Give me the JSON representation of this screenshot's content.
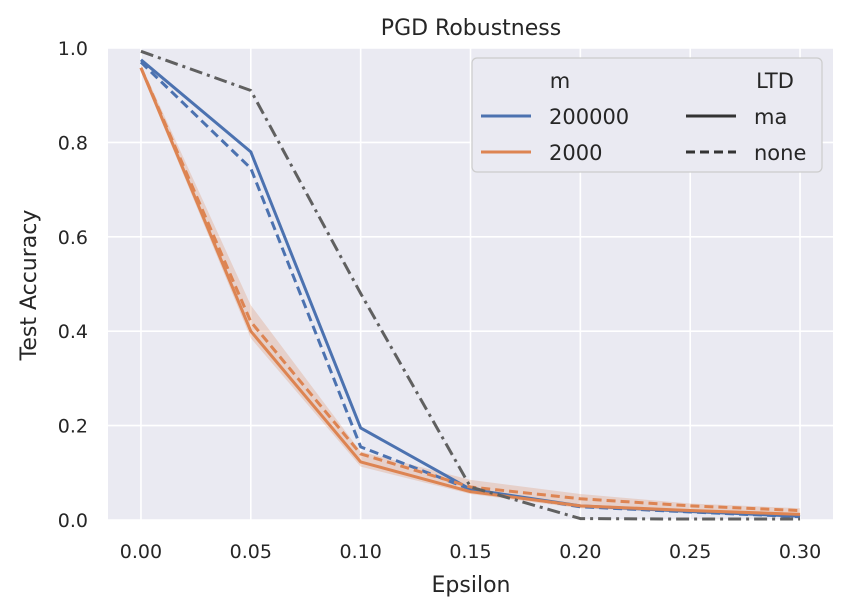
{
  "chart_data": {
    "type": "line",
    "title": "PGD Robustness",
    "xlabel": "Epsilon",
    "ylabel": "Test Accuracy",
    "xlim": [
      -0.015,
      0.315
    ],
    "ylim": [
      0.0,
      1.0
    ],
    "x_ticks": [
      "0.00",
      "0.05",
      "0.10",
      "0.15",
      "0.20",
      "0.25",
      "0.30"
    ],
    "y_ticks": [
      "0.0",
      "0.2",
      "0.4",
      "0.6",
      "0.8",
      "1.0"
    ],
    "grid": true,
    "background": "#eaeaf2",
    "x": [
      0.0,
      0.05,
      0.1,
      0.15,
      0.2,
      0.25,
      0.3
    ],
    "series": [
      {
        "m": "200000",
        "ltd": "ma",
        "color": "#4c72b0",
        "dash": "solid",
        "values": [
          0.975,
          0.78,
          0.195,
          0.065,
          0.03,
          0.018,
          0.008
        ]
      },
      {
        "m": "200000",
        "ltd": "none",
        "color": "#4c72b0",
        "dash": "dashed",
        "values": [
          0.97,
          0.745,
          0.155,
          0.065,
          0.028,
          0.017,
          0.007
        ]
      },
      {
        "m": "2000",
        "ltd": "ma",
        "color": "#dd8452",
        "dash": "solid",
        "values": [
          0.958,
          0.4,
          0.123,
          0.06,
          0.03,
          0.02,
          0.012
        ],
        "band_low": [
          0.95,
          0.385,
          0.113,
          0.055,
          0.025,
          0.015,
          0.008
        ],
        "band_high": [
          0.965,
          0.455,
          0.145,
          0.085,
          0.055,
          0.035,
          0.025
        ]
      },
      {
        "m": "2000",
        "ltd": "none",
        "color": "#dd8452",
        "dash": "dashed",
        "values": [
          0.958,
          0.42,
          0.14,
          0.07,
          0.045,
          0.03,
          0.02
        ]
      },
      {
        "m": "",
        "ltd": "",
        "color": "#606060",
        "dash": "dashdot",
        "values": [
          0.993,
          0.91,
          0.48,
          0.07,
          0.003,
          0.002,
          0.002
        ]
      }
    ],
    "legend": {
      "position": "top-right",
      "hue_title": "m",
      "hue_entries": [
        {
          "label": "200000",
          "color": "#4c72b0"
        },
        {
          "label": "2000",
          "color": "#dd8452"
        }
      ],
      "style_title": "LTD",
      "style_entries": [
        {
          "label": "ma",
          "dash": "solid"
        },
        {
          "label": "none",
          "dash": "dashed"
        }
      ]
    }
  }
}
